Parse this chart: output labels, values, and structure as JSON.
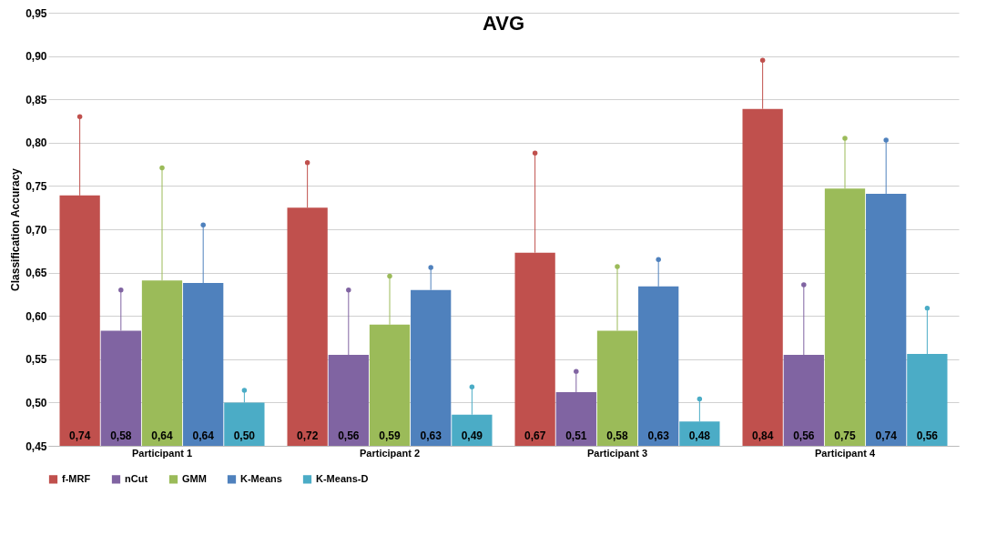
{
  "chart_data": {
    "type": "bar",
    "title": "AVG",
    "ylabel": "Classification Accuracy",
    "categories": [
      "Participant 1",
      "Participant 2",
      "Participant 3",
      "Participant 4"
    ],
    "series": [
      {
        "name": "f-MRF",
        "color": "#c0504d",
        "values": [
          0.739,
          0.725,
          0.673,
          0.839
        ],
        "value_labels": [
          "0,74",
          "0,72",
          "0,67",
          "0,84"
        ],
        "errors": [
          [
            0.739,
            0.83
          ],
          [
            0.725,
            0.777
          ],
          [
            0.673,
            0.788
          ],
          [
            0.839,
            0.895
          ]
        ]
      },
      {
        "name": "nCut",
        "color": "#8064a2",
        "values": [
          0.583,
          0.555,
          0.512,
          0.555
        ],
        "value_labels": [
          "0,58",
          "0,56",
          "0,51",
          "0,56"
        ],
        "errors": [
          [
            0.583,
            0.63
          ],
          [
            0.555,
            0.63
          ],
          [
            0.512,
            0.536
          ],
          [
            0.555,
            0.636
          ]
        ]
      },
      {
        "name": "GMM",
        "color": "#9bbb59",
        "values": [
          0.641,
          0.59,
          0.583,
          0.747
        ],
        "value_labels": [
          "0,64",
          "0,59",
          "0,58",
          "0,75"
        ],
        "errors": [
          [
            0.641,
            0.771
          ],
          [
            0.59,
            0.646
          ],
          [
            0.583,
            0.657
          ],
          [
            0.747,
            0.805
          ]
        ]
      },
      {
        "name": "K-Means",
        "color": "#4f81bd",
        "values": [
          0.638,
          0.63,
          0.634,
          0.741
        ],
        "value_labels": [
          "0,64",
          "0,63",
          "0,63",
          "0,74"
        ],
        "errors": [
          [
            0.638,
            0.705
          ],
          [
            0.63,
            0.656
          ],
          [
            0.634,
            0.665
          ],
          [
            0.741,
            0.803
          ]
        ]
      },
      {
        "name": "K-Means-D",
        "color": "#4bacc6",
        "values": [
          0.5,
          0.486,
          0.478,
          0.556
        ],
        "value_labels": [
          "0,50",
          "0,49",
          "0,48",
          "0,56"
        ],
        "errors": [
          [
            0.5,
            0.514
          ],
          [
            0.486,
            0.518
          ],
          [
            0.478,
            0.504
          ],
          [
            0.556,
            0.609
          ]
        ]
      }
    ],
    "ylim": [
      0.45,
      0.95
    ],
    "yticks": [
      {
        "value": 0.45,
        "label": "0,45"
      },
      {
        "value": 0.5,
        "label": "0,50"
      },
      {
        "value": 0.55,
        "label": "0,55"
      },
      {
        "value": 0.6,
        "label": "0,60"
      },
      {
        "value": 0.65,
        "label": "0,65"
      },
      {
        "value": 0.7,
        "label": "0,70"
      },
      {
        "value": 0.75,
        "label": "0,75"
      },
      {
        "value": 0.8,
        "label": "0,80"
      },
      {
        "value": 0.85,
        "label": "0,85"
      },
      {
        "value": 0.9,
        "label": "0,90"
      },
      {
        "value": 0.95,
        "label": "0,95"
      }
    ],
    "grid": "y",
    "legend": "bottom"
  }
}
